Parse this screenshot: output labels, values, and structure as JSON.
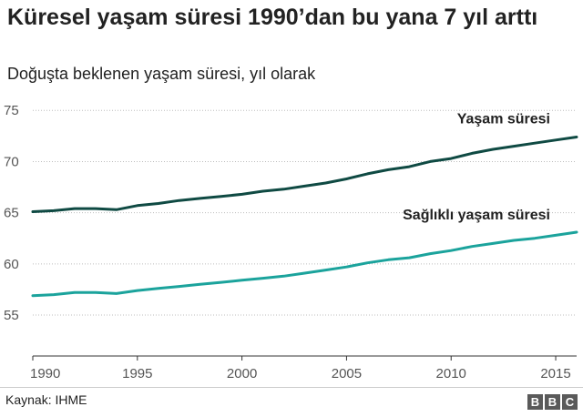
{
  "title": "Küresel yaşam süresi 1990’dan bu yana 7 yıl arttı",
  "subtitle": "Doğuşta beklenen yaşam süresi, yıl olarak",
  "source": "Kaynak: IHME",
  "logo": [
    "B",
    "B",
    "C"
  ],
  "chart_data": {
    "type": "line",
    "x": [
      1990,
      1991,
      1992,
      1993,
      1994,
      1995,
      1996,
      1997,
      1998,
      1999,
      2000,
      2001,
      2002,
      2003,
      2004,
      2005,
      2006,
      2007,
      2008,
      2009,
      2010,
      2011,
      2012,
      2013,
      2014,
      2015,
      2016
    ],
    "xlim": [
      1990,
      2016
    ],
    "ylim": [
      51,
      76
    ],
    "x_ticks": [
      1990,
      1995,
      2000,
      2005,
      2010,
      2015
    ],
    "y_ticks": [
      55,
      60,
      65,
      70,
      75
    ],
    "grid": "horizontal dotted",
    "series": [
      {
        "name": "Yaşam süresi",
        "color": "#0f4a43",
        "values": [
          65.1,
          65.2,
          65.4,
          65.4,
          65.3,
          65.7,
          65.9,
          66.2,
          66.4,
          66.6,
          66.8,
          67.1,
          67.3,
          67.6,
          67.9,
          68.3,
          68.8,
          69.2,
          69.5,
          70.0,
          70.3,
          70.8,
          71.2,
          71.5,
          71.8,
          72.1,
          72.4
        ]
      },
      {
        "name": "Sağlıklı yaşam süresi",
        "color": "#1ba39c",
        "values": [
          56.9,
          57.0,
          57.2,
          57.2,
          57.1,
          57.4,
          57.6,
          57.8,
          58.0,
          58.2,
          58.4,
          58.6,
          58.8,
          59.1,
          59.4,
          59.7,
          60.1,
          60.4,
          60.6,
          61.0,
          61.3,
          61.7,
          62.0,
          62.3,
          62.5,
          62.8,
          63.1
        ]
      }
    ]
  }
}
